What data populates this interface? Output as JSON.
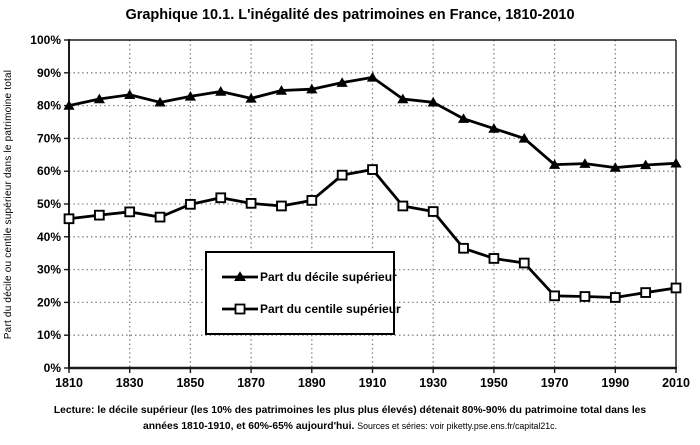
{
  "title": "Graphique 10.1. L'inégalité des patrimoines en France, 1810-2010",
  "y_axis_label": "Part du décile ou centile supérieur dans le patrimoine total",
  "legend": {
    "decile": "Part du décile supérieur",
    "centile": "Part du centile supérieur"
  },
  "caption": {
    "line1": "Lecture: le décile supérieur (les 10% des patrimoines les plus plus élevés) détenait 80%-90% du patrimoine total dans les",
    "line2": "années 1810-1910, et 60%-65% aujourd'hui.",
    "sources": "Sources et séries: voir piketty.pse.ens.fr/capital21c."
  },
  "colors": {
    "series": "#000000",
    "grid": "#7d7d7d",
    "axis": "#1a1a1a",
    "background": "#ffffff",
    "text": "#000000"
  },
  "chart_data": {
    "type": "line",
    "title": "Graphique 10.1. L'inégalité des patrimoines en France, 1810-2010",
    "xlabel": "",
    "ylabel": "Part du décile ou centile supérieur dans le patrimoine total",
    "ylim": [
      0,
      100
    ],
    "grid": true,
    "legend_position": "inside-center-left",
    "x": [
      1810,
      1820,
      1830,
      1840,
      1850,
      1860,
      1870,
      1880,
      1890,
      1900,
      1910,
      1920,
      1930,
      1940,
      1950,
      1960,
      1970,
      1980,
      1990,
      2000,
      2010
    ],
    "series": [
      {
        "name": "Part du décile supérieur",
        "marker": "triangle",
        "values": [
          80.0,
          82.0,
          83.3,
          81.0,
          82.8,
          84.3,
          82.2,
          84.6,
          85.0,
          87.0,
          88.6,
          82.0,
          81.0,
          76.0,
          73.0,
          70.0,
          62.0,
          62.3,
          61.1,
          61.9,
          62.4
        ]
      },
      {
        "name": "Part du centile supérieur",
        "marker": "square",
        "values": [
          45.5,
          46.6,
          47.6,
          46.0,
          49.9,
          51.9,
          50.2,
          49.4,
          51.1,
          58.8,
          60.5,
          49.4,
          47.7,
          36.5,
          33.4,
          32.0,
          22.0,
          21.8,
          21.5,
          23.0,
          24.4
        ]
      }
    ],
    "y_tick_labels": [
      "0%",
      "10%",
      "20%",
      "30%",
      "40%",
      "50%",
      "60%",
      "70%",
      "80%",
      "90%",
      "100%"
    ],
    "x_tick_labels": [
      "1810",
      "1830",
      "1850",
      "1870",
      "1890",
      "1910",
      "1930",
      "1950",
      "1970",
      "1990",
      "2010"
    ],
    "x_tick_years": [
      1810,
      1830,
      1850,
      1870,
      1890,
      1910,
      1930,
      1950,
      1970,
      1990,
      2010
    ]
  }
}
